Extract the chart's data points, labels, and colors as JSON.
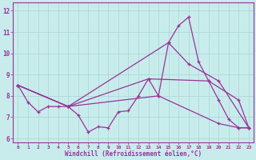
{
  "title": "",
  "xlabel": "Windchill (Refroidissement éolien,°C)",
  "ylabel": "",
  "bg_color": "#c8ecec",
  "grid_color": "#b0d8d8",
  "line_color": "#993399",
  "x_ticks": [
    0,
    1,
    2,
    3,
    4,
    5,
    6,
    7,
    8,
    9,
    10,
    11,
    12,
    13,
    14,
    15,
    16,
    17,
    18,
    19,
    20,
    21,
    22,
    23
  ],
  "y_ticks": [
    6,
    7,
    8,
    9,
    10,
    11,
    12
  ],
  "xlim": [
    -0.5,
    23.5
  ],
  "ylim": [
    5.8,
    12.4
  ],
  "lines": [
    {
      "x": [
        0,
        1,
        2,
        3,
        4,
        5,
        6,
        7,
        8,
        9,
        10,
        11,
        12,
        13,
        14,
        15,
        16,
        17,
        18,
        19,
        20,
        21,
        22,
        23
      ],
      "y": [
        8.5,
        7.7,
        7.25,
        7.5,
        7.5,
        7.5,
        7.1,
        6.3,
        6.55,
        6.5,
        7.25,
        7.3,
        8.0,
        8.8,
        8.0,
        10.5,
        11.3,
        11.7,
        9.6,
        8.7,
        7.8,
        6.9,
        6.5,
        6.5
      ]
    },
    {
      "x": [
        0,
        5,
        15,
        17,
        20,
        23
      ],
      "y": [
        8.5,
        7.5,
        10.5,
        9.5,
        8.7,
        6.5
      ]
    },
    {
      "x": [
        0,
        5,
        13,
        19,
        22,
        23
      ],
      "y": [
        8.5,
        7.5,
        8.8,
        8.7,
        7.8,
        6.5
      ]
    },
    {
      "x": [
        0,
        5,
        14,
        20,
        22,
        23
      ],
      "y": [
        8.5,
        7.5,
        8.0,
        6.7,
        6.5,
        6.5
      ]
    }
  ]
}
